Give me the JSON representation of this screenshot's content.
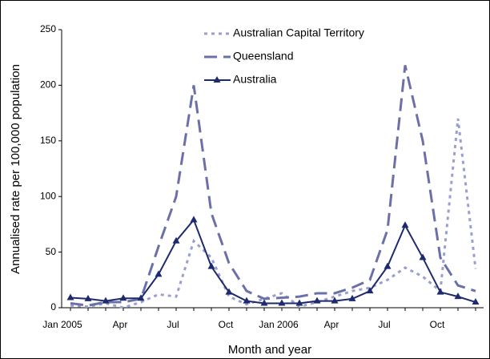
{
  "chart_data": {
    "type": "line",
    "x_label": "Month and year",
    "y_label": "Annualised rate per 100,000 population",
    "categories": [
      "Jan 2005",
      null,
      null,
      "Apr",
      null,
      null,
      "Jul",
      null,
      null,
      "Oct",
      null,
      null,
      "Jan 2006",
      null,
      null,
      "Apr",
      null,
      null,
      "Jul",
      null,
      null,
      "Oct",
      null,
      null
    ],
    "ylim": [
      0,
      250
    ],
    "yticks": [
      0,
      50,
      100,
      150,
      200,
      250
    ],
    "legend": "top",
    "series": [
      {
        "name": "Australian Capital Territory",
        "color": "#9a9fd2",
        "dash": "dotted",
        "values": [
          2,
          1,
          4,
          0,
          5,
          12,
          10,
          60,
          45,
          10,
          3,
          8,
          13,
          1,
          5,
          10,
          15,
          18,
          25,
          36,
          28,
          15,
          170,
          35
        ]
      },
      {
        "name": "Queensland",
        "color": "#6b70a9",
        "dash": "dashed",
        "values": [
          4,
          2,
          5,
          5,
          8,
          55,
          100,
          200,
          85,
          40,
          15,
          8,
          9,
          10,
          13,
          13,
          18,
          25,
          70,
          218,
          150,
          45,
          20,
          15
        ]
      },
      {
        "name": "Australia",
        "color": "#1e2a6e",
        "dash": "solid",
        "marker": "triangle",
        "values": [
          9,
          8,
          6,
          8.5,
          8.5,
          30,
          60,
          79,
          37,
          14,
          6,
          4,
          4,
          4,
          6,
          6,
          8,
          15,
          37,
          74,
          45,
          14,
          10,
          5
        ]
      }
    ]
  }
}
